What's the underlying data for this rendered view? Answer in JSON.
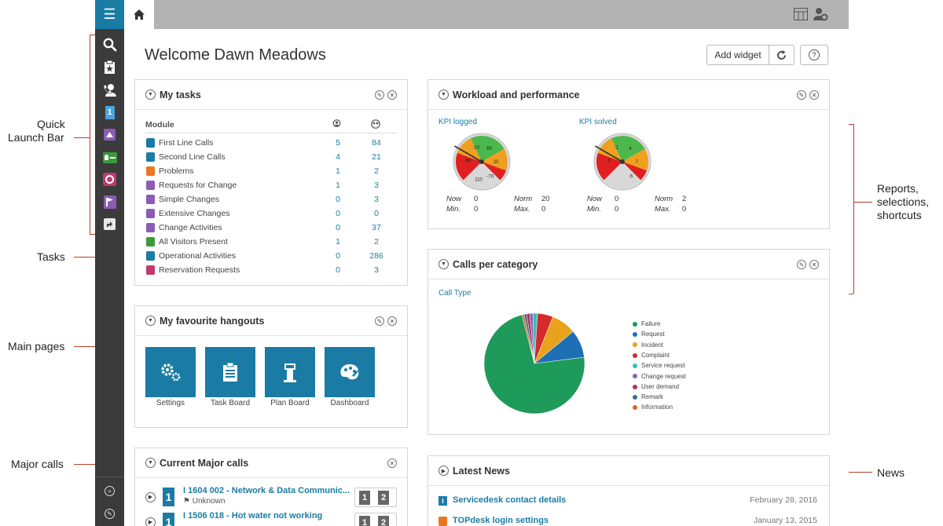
{
  "annotations": {
    "quick_launch": [
      "Quick",
      "Launch Bar"
    ],
    "tasks": "Tasks",
    "main_pages": "Main pages",
    "major_calls": "Major calls",
    "reports": [
      "Reports,",
      "selections,",
      "shortcuts"
    ],
    "news": "News"
  },
  "header": {
    "welcome": "Welcome Dawn Meadows",
    "add_widget": "Add widget"
  },
  "my_tasks": {
    "title": "My tasks",
    "col_module": "Module",
    "rows": [
      {
        "label": "First Line Calls",
        "mine": "5",
        "group": "84",
        "color": "#1a7ca5"
      },
      {
        "label": "Second Line Calls",
        "mine": "4",
        "group": "21",
        "color": "#1a7ca5"
      },
      {
        "label": "Problems",
        "mine": "1",
        "group": "2",
        "color": "#e87722"
      },
      {
        "label": "Requests for Change",
        "mine": "1",
        "group": "3",
        "color": "#8a5cb5"
      },
      {
        "label": "Simple Changes",
        "mine": "0",
        "group": "3",
        "color": "#8a5cb5"
      },
      {
        "label": "Extensive Changes",
        "mine": "0",
        "group": "0",
        "color": "#8a5cb5"
      },
      {
        "label": "Change Activities",
        "mine": "0",
        "group": "37",
        "color": "#8a5cb5"
      },
      {
        "label": "All Visitors Present",
        "mine": "1",
        "group": "2",
        "color": "#3a9a3a"
      },
      {
        "label": "Operational Activities",
        "mine": "0",
        "group": "286",
        "color": "#1a7ca5"
      },
      {
        "label": "Reservation Requests",
        "mine": "0",
        "group": "3",
        "color": "#c0396f"
      }
    ]
  },
  "hangouts": {
    "title": "My favourite hangouts",
    "tiles": [
      "Settings",
      "Task Board",
      "Plan Board",
      "Dashboard"
    ]
  },
  "major_calls": {
    "title": "Current Major calls",
    "items": [
      {
        "title": "I 1604 002 - Network & Data Communic...",
        "sub": "Unknown"
      },
      {
        "title": "I 1506 018 - Hot water not working",
        "sub": ""
      }
    ]
  },
  "workload": {
    "title": "Workload and performance",
    "gauges": [
      {
        "label": "KPI logged",
        "now_label": "Now",
        "now": "0",
        "norm_label": "Norm",
        "norm": "20",
        "min_label": "Min.",
        "min": "0",
        "max_label": "Max.",
        "max": "0",
        "ticks": [
          "-10",
          "80",
          "-50",
          "20",
          "-70",
          "110"
        ]
      },
      {
        "label": "KPI solved",
        "now_label": "Now",
        "now": "0",
        "norm_label": "Norm",
        "norm": "2",
        "min_label": "Min.",
        "min": "0",
        "max_label": "Max.",
        "max": "0",
        "ticks": [
          "-1",
          "4",
          "-3",
          "7",
          "-5"
        ]
      }
    ]
  },
  "calls_per_category": {
    "title": "Calls per category",
    "subtitle": "Call Type"
  },
  "chart_data": {
    "type": "pie",
    "title": "Call Type",
    "categories": [
      "Failure",
      "Request",
      "Incident",
      "Complaint",
      "Service request",
      "Change request",
      "User demand",
      "Remark",
      "Information"
    ],
    "values": [
      73,
      9,
      8,
      5,
      1.5,
      1,
      1,
      0.8,
      0.7
    ],
    "colors": [
      "#1e9a5a",
      "#1f6fb5",
      "#e8a21c",
      "#d42a2a",
      "#3bbbbd",
      "#8a63b5",
      "#b0305f",
      "#3a6e90",
      "#e0642a"
    ],
    "legend": "right"
  },
  "news": {
    "title": "Latest News",
    "items": [
      {
        "title": "Servicedesk contact details",
        "date": "February 28, 2016"
      },
      {
        "title": "TOPdesk login settings",
        "date": "January 13, 2015"
      }
    ]
  }
}
